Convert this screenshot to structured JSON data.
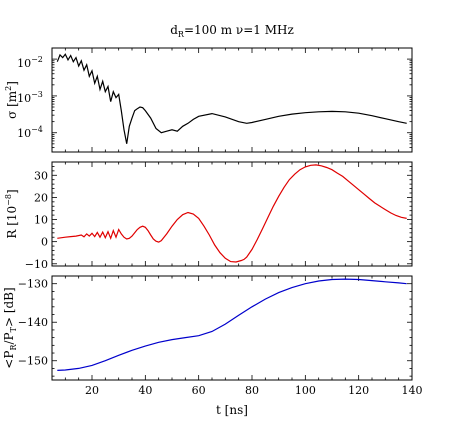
{
  "figure": {
    "title": "d_R=100 m   ν=1 MHz",
    "title_parts": {
      "d": "d",
      "sub": "R",
      "rest": "=100 m   ν=1 MHz"
    },
    "xlabel": "t [ns]"
  },
  "chart_data": [
    {
      "type": "line",
      "name": "sigma",
      "ylabel": "σ [m²]",
      "ylabel_parts": {
        "sym": "σ [m",
        "sup": "2",
        "end": "]"
      },
      "yscale": "log",
      "xlim": [
        5,
        140
      ],
      "ylim": [
        3e-05,
        0.02
      ],
      "xticks": [
        20,
        40,
        60,
        80,
        100,
        120,
        140
      ],
      "ytick_labels": [
        {
          "value": 0.01,
          "base": "10",
          "exp": "−2"
        },
        {
          "value": 0.001,
          "base": "10",
          "exp": "−3"
        },
        {
          "value": 0.0001,
          "base": "10",
          "exp": "−4"
        }
      ],
      "color": "#000000",
      "x": [
        7,
        8,
        9,
        10,
        11,
        12,
        13,
        14,
        15,
        16,
        17,
        18,
        19,
        20,
        21,
        22,
        23,
        24,
        25,
        26,
        27,
        28,
        29,
        30,
        31,
        32,
        33,
        34,
        35,
        36,
        37,
        38,
        39,
        40,
        42,
        44,
        46,
        48,
        50,
        52,
        54,
        56,
        58,
        60,
        65,
        70,
        75,
        78,
        80,
        85,
        90,
        95,
        100,
        105,
        110,
        115,
        120,
        125,
        130,
        135,
        138
      ],
      "y": [
        0.0085,
        0.013,
        0.011,
        0.0135,
        0.0095,
        0.0125,
        0.0085,
        0.011,
        0.0065,
        0.009,
        0.005,
        0.007,
        0.0034,
        0.0048,
        0.0022,
        0.0034,
        0.0015,
        0.0025,
        0.0013,
        0.0018,
        0.0007,
        0.0013,
        0.0009,
        0.0011,
        0.0004,
        0.00012,
        5e-05,
        0.00015,
        0.00025,
        0.0004,
        0.00045,
        0.0005,
        0.00048,
        0.0004,
        0.00025,
        0.00013,
        0.0001,
        0.00011,
        0.00012,
        0.00011,
        0.00015,
        0.00018,
        0.00023,
        0.00028,
        0.00033,
        0.00027,
        0.0002,
        0.00018,
        0.00019,
        0.00023,
        0.00028,
        0.00032,
        0.00035,
        0.00037,
        0.00038,
        0.00037,
        0.00034,
        0.00029,
        0.00024,
        0.0002,
        0.00018
      ]
    },
    {
      "type": "line",
      "name": "R",
      "ylabel": "R [10⁻⁸]",
      "ylabel_parts": {
        "sym": "R [10",
        "sup": "−8",
        "end": "]"
      },
      "yscale": "linear",
      "xlim": [
        5,
        140
      ],
      "ylim": [
        -11,
        36
      ],
      "xticks": [
        20,
        40,
        60,
        80,
        100,
        120,
        140
      ],
      "yticks": [
        -10,
        0,
        10,
        20,
        30
      ],
      "ytick_labels_text": [
        "−10",
        "0",
        "10",
        "20",
        "30"
      ],
      "color": "#e00000",
      "x": [
        7,
        10,
        12,
        14,
        16,
        17,
        18,
        19,
        20,
        21,
        22,
        23,
        24,
        25,
        26,
        27,
        28,
        29,
        30,
        31,
        32,
        33,
        34,
        35,
        36,
        37,
        38,
        39,
        40,
        41,
        42,
        43,
        44,
        45,
        46,
        47,
        48,
        50,
        52,
        54,
        56,
        58,
        60,
        62,
        64,
        66,
        68,
        70,
        72,
        74,
        76,
        77,
        78,
        80,
        82,
        84,
        86,
        88,
        90,
        92,
        94,
        96,
        98,
        100,
        102,
        104,
        106,
        108,
        110,
        112,
        114,
        116,
        118,
        120,
        122,
        124,
        126,
        128,
        130,
        132,
        134,
        136,
        138
      ],
      "y": [
        1.5,
        2,
        2.3,
        2.5,
        3,
        2.2,
        3.5,
        2.5,
        3.8,
        2.3,
        4.2,
        2,
        4.3,
        1.8,
        4.5,
        1.5,
        5,
        2,
        5.5,
        3.5,
        2,
        1.2,
        1.5,
        2.5,
        4,
        5.5,
        6.5,
        7,
        6.5,
        5,
        3,
        1.2,
        0.2,
        -0.2,
        0.5,
        2,
        3.5,
        7,
        10,
        12.2,
        13.2,
        12.5,
        10.5,
        7,
        3,
        -1.5,
        -5,
        -7.5,
        -9,
        -9.2,
        -8.5,
        -8,
        -7,
        -3.5,
        1,
        6,
        11,
        16,
        20.5,
        24.5,
        28,
        30.5,
        32.5,
        33.8,
        34.5,
        34.7,
        34.3,
        33.5,
        32.5,
        31,
        29.5,
        27.5,
        25.5,
        23.5,
        21.5,
        19.5,
        17.5,
        16,
        14.5,
        13,
        11.8,
        11,
        10.5
      ]
    },
    {
      "type": "line",
      "name": "power ratio",
      "ylabel": "<P_R/P_T> [dB]",
      "ylabel_parts": {
        "a": "<P",
        "s1": "R",
        "b": "/P",
        "s2": "T",
        "c": "> [dB]"
      },
      "yscale": "linear",
      "xlim": [
        5,
        140
      ],
      "ylim": [
        -155,
        -128
      ],
      "xticks": [
        20,
        40,
        60,
        80,
        100,
        120,
        140
      ],
      "xtick_labels_text": [
        "20",
        "40",
        "60",
        "80",
        "100",
        "120",
        "140"
      ],
      "yticks": [
        -150,
        -140,
        -130
      ],
      "ytick_labels_text": [
        "−150",
        "−140",
        "−130"
      ],
      "color": "#0000cc",
      "x": [
        7,
        10,
        15,
        20,
        25,
        30,
        35,
        40,
        45,
        50,
        55,
        60,
        65,
        70,
        75,
        80,
        85,
        90,
        95,
        100,
        105,
        110,
        115,
        120,
        125,
        130,
        135,
        138
      ],
      "y": [
        -152.5,
        -152.4,
        -152,
        -151.2,
        -150,
        -148.6,
        -147.3,
        -146.2,
        -145.2,
        -144.5,
        -144,
        -143.5,
        -142.4,
        -140.5,
        -138.2,
        -136,
        -134,
        -132.3,
        -131,
        -130,
        -129.3,
        -128.9,
        -128.8,
        -128.9,
        -129.2,
        -129.5,
        -129.8,
        -130
      ]
    }
  ]
}
